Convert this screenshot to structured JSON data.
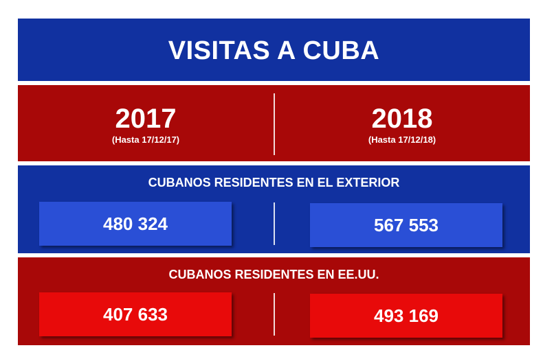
{
  "title": "VISITAS A CUBA",
  "years": [
    {
      "year": "2017",
      "note": "(Hasta 17/12/17)"
    },
    {
      "year": "2018",
      "note": "(Hasta 17/12/18)"
    }
  ],
  "sections": [
    {
      "label": "CUBANOS RESIDENTES EN EL EXTERIOR",
      "values": [
        "480 324",
        "567 553"
      ]
    },
    {
      "label": "CUBANOS RESIDENTES EN EE.UU.",
      "values": [
        "407 633",
        "493 169"
      ]
    }
  ],
  "colors": {
    "blue_band": "#1131a0",
    "red_band": "#a80808",
    "blue_box": "#2a4fd6",
    "red_box": "#e80a0a"
  }
}
